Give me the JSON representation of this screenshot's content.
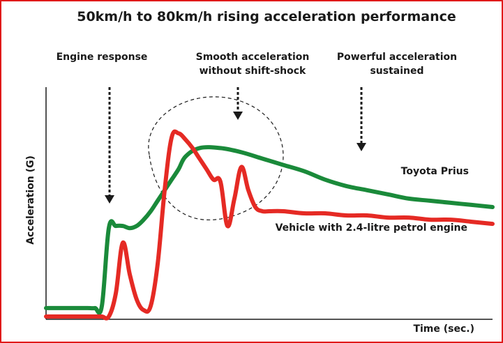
{
  "chart_data": {
    "type": "line",
    "title": "50km/h to 80km/h rising acceleration performance",
    "xlabel": "Time (sec.)",
    "ylabel": "Acceleration (G)",
    "annotations": [
      {
        "text_lines": [
          "Engine response"
        ]
      },
      {
        "text_lines": [
          "Smooth acceleration",
          "without shift-shock"
        ]
      },
      {
        "text_lines": [
          "Powerful acceleration",
          "sustained"
        ]
      }
    ],
    "series": [
      {
        "name": "Toyota Prius",
        "color": "#1a8a3a",
        "x": [
          0,
          10,
          20,
          30,
          40,
          50,
          60,
          70,
          80,
          90,
          100,
          110,
          120,
          130,
          140,
          150,
          160,
          170,
          180,
          190,
          200,
          220,
          250,
          280,
          310,
          340,
          370,
          400,
          430,
          460,
          490,
          520,
          550,
          580,
          610,
          640
        ],
        "y": [
          0.04,
          0.04,
          0.04,
          0.04,
          0.04,
          0.04,
          0.04,
          0.04,
          0.05,
          0.42,
          0.43,
          0.43,
          0.42,
          0.43,
          0.46,
          0.5,
          0.55,
          0.6,
          0.65,
          0.7,
          0.76,
          0.8,
          0.8,
          0.78,
          0.75,
          0.72,
          0.69,
          0.65,
          0.62,
          0.6,
          0.58,
          0.56,
          0.55,
          0.54,
          0.53,
          0.52
        ]
      },
      {
        "name": "Vehicle with 2.4-litre petrol engine",
        "color": "#e52a24",
        "x": [
          0,
          10,
          20,
          30,
          40,
          50,
          60,
          70,
          80,
          90,
          100,
          110,
          120,
          130,
          140,
          150,
          160,
          170,
          180,
          190,
          200,
          210,
          220,
          230,
          240,
          250,
          260,
          270,
          280,
          290,
          300,
          310,
          320,
          340,
          370,
          400,
          430,
          460,
          490,
          520,
          550,
          580,
          610,
          640
        ],
        "y": [
          0,
          0,
          0,
          0,
          0,
          0,
          0,
          0,
          0,
          0,
          0.11,
          0.35,
          0.2,
          0.08,
          0.03,
          0.05,
          0.25,
          0.6,
          0.85,
          0.87,
          0.84,
          0.8,
          0.75,
          0.7,
          0.65,
          0.64,
          0.43,
          0.56,
          0.71,
          0.6,
          0.52,
          0.5,
          0.5,
          0.5,
          0.49,
          0.49,
          0.48,
          0.48,
          0.47,
          0.47,
          0.46,
          0.46,
          0.45,
          0.44
        ]
      }
    ],
    "xlim": [
      0,
      640
    ],
    "ylim": [
      0,
      1
    ],
    "legend": "inline-right",
    "grid": false
  }
}
